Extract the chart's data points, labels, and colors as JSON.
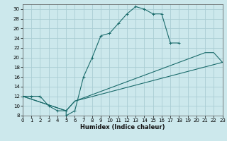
{
  "xlabel": "Humidex (Indice chaleur)",
  "bg_color": "#cce8ec",
  "grid_color": "#aacdd4",
  "line_color": "#1a6b6b",
  "xlim": [
    0,
    23
  ],
  "ylim": [
    8,
    31
  ],
  "xticks": [
    0,
    1,
    2,
    3,
    4,
    5,
    6,
    7,
    8,
    9,
    10,
    11,
    12,
    13,
    14,
    15,
    16,
    17,
    18,
    19,
    20,
    21,
    22,
    23
  ],
  "yticks": [
    8,
    10,
    12,
    14,
    16,
    18,
    20,
    22,
    24,
    26,
    28,
    30
  ],
  "curve1_x": [
    0,
    1,
    2,
    3,
    4,
    5,
    5,
    6,
    7,
    8,
    9,
    10,
    11,
    12,
    13,
    14,
    15,
    16,
    17,
    18
  ],
  "curve1_y": [
    12,
    12,
    12,
    10,
    9,
    9,
    8,
    9,
    16,
    20,
    24.5,
    25,
    27,
    29,
    30.5,
    30,
    29,
    29,
    23,
    23
  ],
  "curve2_x": [
    0,
    5,
    6,
    23
  ],
  "curve2_y": [
    12,
    9,
    11,
    19
  ],
  "curve3_x": [
    0,
    5,
    6,
    21,
    22,
    23
  ],
  "curve3_y": [
    12,
    9,
    11,
    21,
    21,
    19
  ]
}
